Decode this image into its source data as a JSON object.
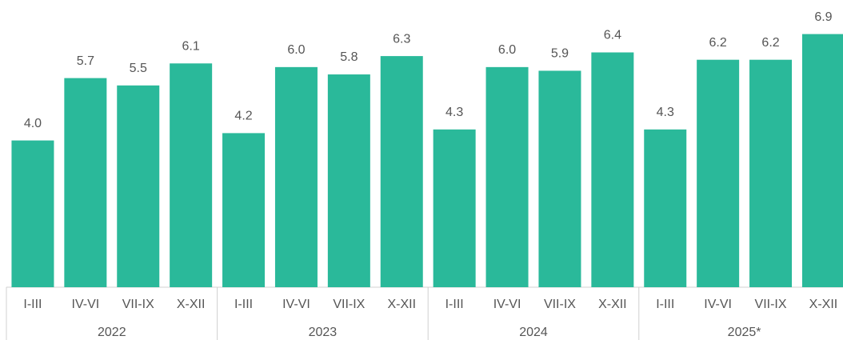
{
  "chart_data": {
    "type": "bar",
    "categories": [
      "I-III",
      "IV-VI",
      "VII-IX",
      "X-XII",
      "I-III",
      "IV-VI",
      "VII-IX",
      "X-XII",
      "I-III",
      "IV-VI",
      "VII-IX",
      "X-XII",
      "I-III",
      "IV-VI",
      "VII-IX",
      "X-XII"
    ],
    "groups": [
      "2022",
      "2023",
      "2024",
      "2025*"
    ],
    "values": [
      4.0,
      5.7,
      5.5,
      6.1,
      4.2,
      6.0,
      5.8,
      6.3,
      4.3,
      6.0,
      5.9,
      6.4,
      4.3,
      6.2,
      6.2,
      6.9
    ],
    "value_labels": [
      "4.0",
      "5.7",
      "5.5",
      "6.1",
      "4.2",
      "6.0",
      "5.8",
      "6.3",
      "4.3",
      "6.0",
      "5.9",
      "6.4",
      "4.3",
      "6.2",
      "6.2",
      "6.9"
    ],
    "color": "#2ab99a",
    "ylim": [
      0,
      7
    ]
  }
}
